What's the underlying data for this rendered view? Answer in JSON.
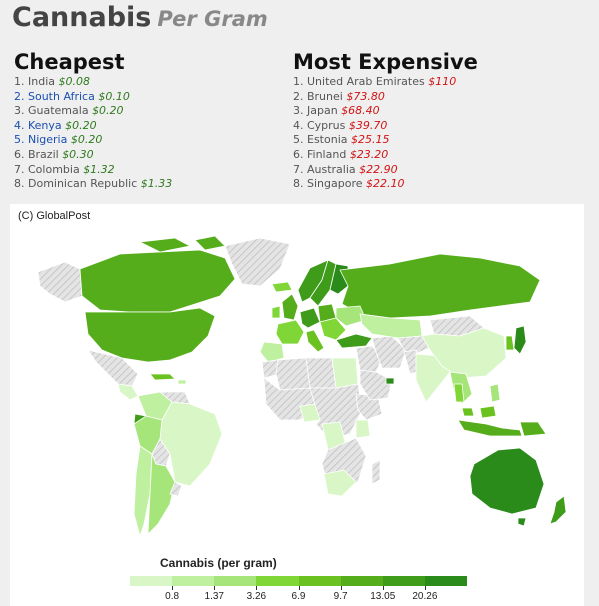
{
  "title": {
    "main": "Cannabis",
    "sub": "Per Gram"
  },
  "cheapest": {
    "heading": "Cheapest",
    "items": [
      {
        "label": "1. India",
        "price": "$0.08",
        "link": false
      },
      {
        "label": "2. South Africa",
        "price": "$0.10",
        "link": true
      },
      {
        "label": "3. Guatemala",
        "price": "$0.20",
        "link": false
      },
      {
        "label": "4. Kenya",
        "price": "$0.20",
        "link": true
      },
      {
        "label": "5. Nigeria",
        "price": "$0.20",
        "link": true
      },
      {
        "label": "6. Brazil",
        "price": "$0.30",
        "link": false
      },
      {
        "label": "7. Colombia",
        "price": "$1.32",
        "link": false
      },
      {
        "label": "8. Dominican Republic",
        "price": "$1.33",
        "link": false
      }
    ]
  },
  "expensive": {
    "heading": "Most Expensive",
    "items": [
      {
        "label": "1. United Arab Emirates",
        "price": "$110"
      },
      {
        "label": "2. Brunei",
        "price": "$73.80"
      },
      {
        "label": "3. Japan",
        "price": "$68.40"
      },
      {
        "label": "4. Cyprus",
        "price": "$39.70"
      },
      {
        "label": "5. Estonia",
        "price": "$25.15"
      },
      {
        "label": "6. Finland",
        "price": "$23.20"
      },
      {
        "label": "7. Australia",
        "price": "$22.90"
      },
      {
        "label": "8. Singapore",
        "price": "$22.10"
      }
    ]
  },
  "map": {
    "credit": "(C) GlobalPost",
    "legend_title": "Cannabis (per gram)",
    "legend_colors": [
      "#d9f7c6",
      "#bff0a0",
      "#a6e57a",
      "#7fd636",
      "#6ac11f",
      "#56ad1b",
      "#3f9c1a",
      "#2a8a1a"
    ],
    "legend_ticks": [
      "0.8",
      "1.37",
      "3.26",
      "6.9",
      "9.7",
      "13.05",
      "20.26"
    ]
  }
}
